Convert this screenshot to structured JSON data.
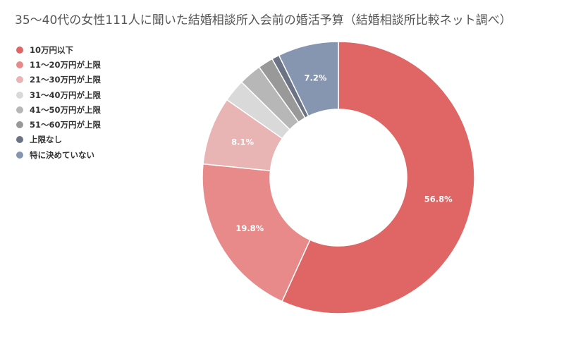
{
  "title": "35〜40代の女性111人に聞いた結婚相談所入会前の婚活予算（結婚相談所比較ネット調べ）",
  "chart_data": {
    "type": "pie",
    "title": "35〜40代の女性111人に聞いた結婚相談所入会前の婚活予算（結婚相談所比較ネット調べ）",
    "legend_position": "left",
    "slices": [
      {
        "label": "10万円以下",
        "value": 56.8,
        "color": "#e06666",
        "data_label": "56.8%"
      },
      {
        "label": "11〜20万円が上限",
        "value": 19.8,
        "color": "#e88a8a",
        "data_label": "19.8%"
      },
      {
        "label": "21〜30万円が上限",
        "value": 8.1,
        "color": "#e8b4b4",
        "data_label": "8.1%"
      },
      {
        "label": "31〜40万円が上限",
        "value": 2.7,
        "color": "#d9d9d9",
        "data_label": ""
      },
      {
        "label": "41〜50万円が上限",
        "value": 2.7,
        "color": "#b7b7b7",
        "data_label": ""
      },
      {
        "label": "51〜60万円が上限",
        "value": 1.8,
        "color": "#999999",
        "data_label": ""
      },
      {
        "label": "上限なし",
        "value": 0.9,
        "color": "#6b7384",
        "data_label": ""
      },
      {
        "label": "特に決めていない",
        "value": 7.2,
        "color": "#8796b0",
        "data_label": "7.2%"
      }
    ]
  }
}
